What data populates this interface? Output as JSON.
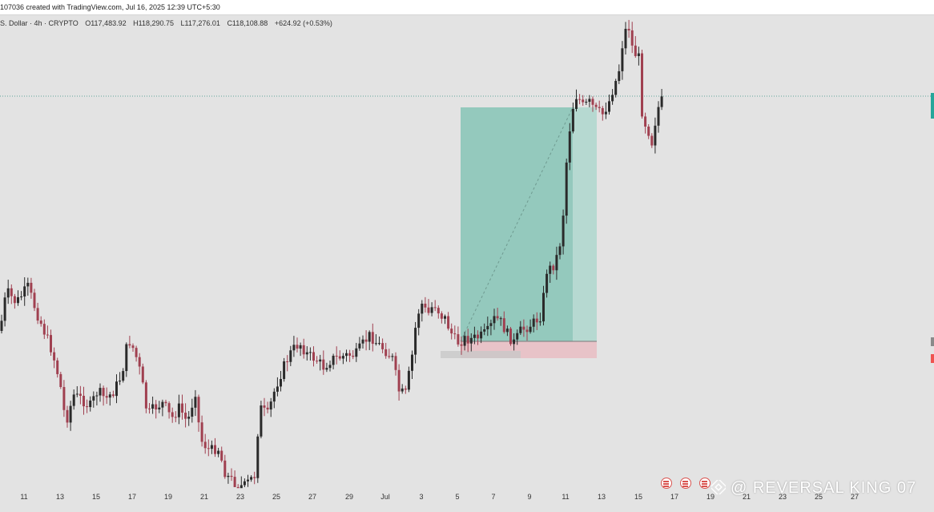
{
  "header": {
    "caption": "107036 created with TradingView.com, Jul 16, 2025 12:39 UTC+5:30"
  },
  "symbol": {
    "name": "S. Dollar · 4h · CRYPTO",
    "open": "O117,483.92",
    "high": "H118,290.75",
    "low": "L117,276.01",
    "close": "C118,108.88",
    "change": "+624.92 (+0.53%)"
  },
  "colors": {
    "up": "#2a2a2a",
    "down": "#a04050",
    "target_zone": "#94c9bd",
    "target_zone_light": "#b6d9d1",
    "stop_zone": "#e8c3c8",
    "price_line": "#5fa69a",
    "accent_green": "#26a69a",
    "accent_red": "#ef5350"
  },
  "xaxis": {
    "labels": [
      "11",
      "13",
      "15",
      "17",
      "19",
      "21",
      "23",
      "25",
      "27",
      "29",
      "Jul",
      "3",
      "5",
      "7",
      "9",
      "11",
      "13",
      "15",
      "17",
      "19",
      "21",
      "23",
      "25",
      "27"
    ]
  },
  "watermark": {
    "text": "@ REVERSAL KING 07",
    "icon": "binance-icon"
  },
  "events": {
    "icons": [
      "us-flag-icon",
      "us-flag-icon",
      "us-flag-icon"
    ]
  }
}
